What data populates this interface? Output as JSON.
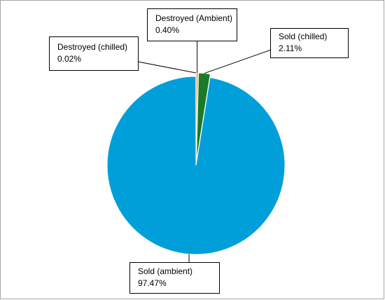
{
  "chart_data": {
    "type": "pie",
    "categories": [
      "Destroyed (Ambient)",
      "Sold (chilled)",
      "Sold (ambient)",
      "Destroyed (chilled)"
    ],
    "values": [
      0.4,
      2.11,
      97.47,
      0.02
    ],
    "value_labels": [
      "0.40%",
      "2.11%",
      "97.47%",
      "0.02%"
    ],
    "colors": [
      "#f5a35c",
      "#1a7a2a",
      "#009fda",
      "#7f7f7f"
    ]
  }
}
